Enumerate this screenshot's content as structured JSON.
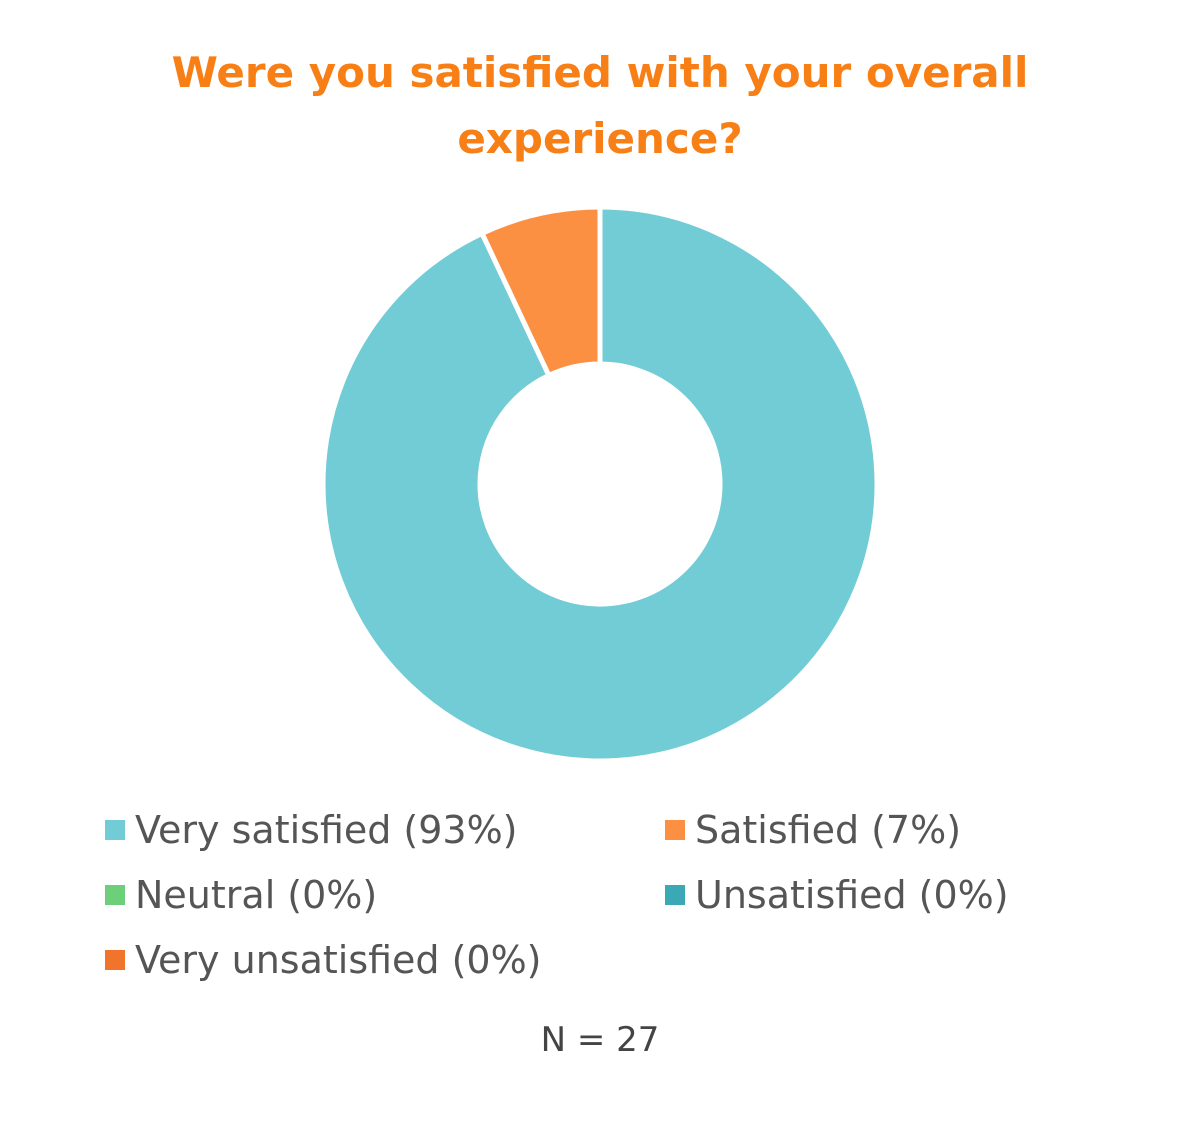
{
  "chart_data": {
    "type": "donut",
    "title": "Were you satisfied with your overall experience?",
    "categories": [
      "Very satisfied",
      "Satisfied",
      "Neutral",
      "Unsatisfied",
      "Very unsatisfied"
    ],
    "values": [
      93,
      7,
      0,
      0,
      0
    ],
    "value_labels": [
      "(93%)",
      "(7%)",
      "(0%)",
      "(0%)",
      "(0%)"
    ],
    "colors": [
      "#72ccd5",
      "#fb9043",
      "#6dcf7a",
      "#3aa8b5",
      "#f0742a"
    ],
    "annotation": "N = 27"
  }
}
